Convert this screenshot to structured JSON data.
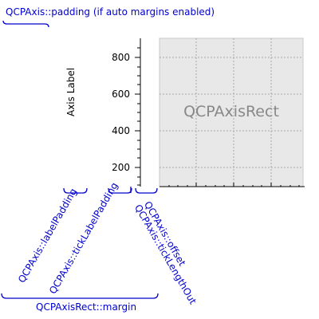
{
  "labels": {
    "axis_padding": "QCPAxis::padding (if auto margins enabled)",
    "label_padding": "QCPAxis::labelPadding",
    "tick_label_padding": "QCPAxis::tickLabelPadding",
    "offset": "QCPAxis::offset",
    "tick_length_out": "QCPAxis::tickLengthOut",
    "rect_margin": "QCPAxisRect::margin",
    "axis_rect": "QCPAxisRect",
    "axis_label": "Axis Label"
  },
  "ticks": [
    "800",
    "600",
    "400",
    "200"
  ],
  "colors": {
    "annotation": "#0000cc",
    "rect_fill": "#e8e8e8",
    "grid": "#a8a8a8",
    "axis": "#000000",
    "rect_text": "#888888"
  }
}
